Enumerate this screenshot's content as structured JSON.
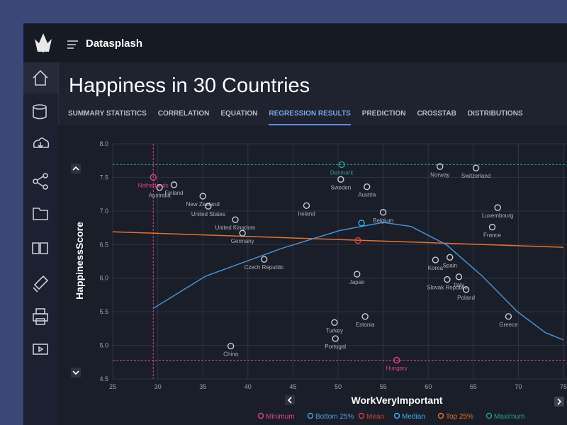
{
  "app": {
    "name": "Datasplash"
  },
  "page": {
    "title": "Happiness in 30 Countries",
    "tabs": [
      "SUMMARY STATISTICS",
      "CORRELATION",
      "EQUATION",
      "REGRESSION RESULTS",
      "PREDICTION",
      "CROSSTAB",
      "DISTRIBUTIONS"
    ],
    "active_tab": "REGRESSION RESULTS"
  },
  "chart_data": {
    "type": "scatter",
    "x_label": "WorkVeryImportant",
    "y_label": "HappinessScore",
    "xlim": [
      25,
      75
    ],
    "ylim": [
      4.5,
      8.0
    ],
    "xticks": [
      25,
      30,
      35,
      40,
      45,
      50,
      55,
      60,
      65,
      70,
      75
    ],
    "yticks": [
      {
        "value": 4.5,
        "label": "4.5"
      },
      {
        "value": 5,
        "label": "5.0"
      },
      {
        "value": 5.5,
        "label": "5.5"
      },
      {
        "value": 6,
        "label": "6.0"
      },
      {
        "value": 6.5,
        "label": "6.5"
      },
      {
        "value": 7,
        "label": "7.0"
      },
      {
        "value": 7.5,
        "label": "7.5"
      },
      {
        "value": 8,
        "label": "8.0"
      }
    ],
    "grid": true,
    "series": [
      {
        "labels": [
          "Netherlands",
          "Australia",
          "Finland",
          "New Zealand",
          "United States",
          "United Kingdom",
          "Germany",
          "Czech Republic",
          "Ireland",
          "Denmark",
          "Sweden",
          "Austria",
          "Belgium",
          null,
          null,
          "Japan",
          "Norway",
          "Switzerland",
          "Luxembourg",
          "France",
          "Korea",
          "Spain",
          "Italy",
          "Slovak Republic",
          "Poland",
          "Greece",
          "Estonia",
          "Turkey",
          "Portugal",
          "China",
          "Hungary"
        ],
        "x": [
          29.5,
          30.2,
          31.8,
          35.0,
          35.6,
          38.6,
          39.4,
          41.8,
          46.5,
          50.4,
          50.3,
          53.2,
          55.0,
          52.6,
          52.2,
          52.1,
          61.3,
          65.3,
          67.7,
          67.1,
          60.8,
          62.4,
          63.4,
          62.1,
          64.2,
          68.9,
          53.0,
          49.6,
          49.7,
          38.1,
          56.5
        ],
        "values": [
          7.5,
          7.35,
          7.39,
          7.22,
          7.07,
          6.87,
          6.67,
          6.28,
          7.08,
          7.69,
          7.47,
          7.36,
          6.98,
          6.82,
          6.56,
          6.06,
          7.66,
          7.64,
          7.05,
          6.76,
          6.27,
          6.31,
          6.02,
          5.98,
          5.83,
          5.43,
          5.43,
          5.34,
          5.1,
          4.99,
          4.78
        ],
        "colors": [
          "#e0408a",
          "#c8ccd6",
          "#c8ccd6",
          "#c8ccd6",
          "#c8ccd6",
          "#c8ccd6",
          "#c8ccd6",
          "#c8ccd6",
          "#c8ccd6",
          "#2a9d8f",
          "#c8ccd6",
          "#c8ccd6",
          "#c8ccd6",
          "#3ab0f0",
          "#e03a3a",
          "#c8ccd6",
          "#c8ccd6",
          "#c8ccd6",
          "#c8ccd6",
          "#c8ccd6",
          "#c8ccd6",
          "#c8ccd6",
          "#c8ccd6",
          "#c8ccd6",
          "#c8ccd6",
          "#c8ccd6",
          "#c8ccd6",
          "#c8ccd6",
          "#c8ccd6",
          "#c8ccd6",
          "#e0408a"
        ]
      }
    ],
    "regression": {
      "x": [
        25,
        75
      ],
      "values": [
        6.69,
        6.46
      ],
      "color": "#e8702a"
    },
    "curve": {
      "x": [
        29.5,
        35.3,
        43.9,
        50.2,
        55.0,
        58.1,
        62.0,
        66.0,
        69.9,
        73.0,
        75.0
      ],
      "values": [
        5.55,
        6.03,
        6.45,
        6.71,
        6.83,
        6.77,
        6.5,
        6.03,
        5.5,
        5.19,
        5.08
      ],
      "color": "#4a8fd0"
    },
    "reference_lines": [
      {
        "axis": "x",
        "value": 29.5,
        "color": "#e0408a"
      },
      {
        "axis": "y",
        "value": 4.78,
        "color": "#e0408a"
      },
      {
        "axis": "y",
        "value": 7.69,
        "color": "#2a9d8f"
      }
    ],
    "legend": [
      {
        "name": "Minimum",
        "color": "#e0408a"
      },
      {
        "name": "Bottom 25%",
        "color": "#4aa3df"
      },
      {
        "name": "Mean",
        "color": "#e03a3a"
      },
      {
        "name": "Median",
        "color": "#3ab0f0"
      },
      {
        "name": "Top 25%",
        "color": "#e8702a"
      },
      {
        "name": "Maximum",
        "color": "#2a9d8f"
      }
    ]
  }
}
